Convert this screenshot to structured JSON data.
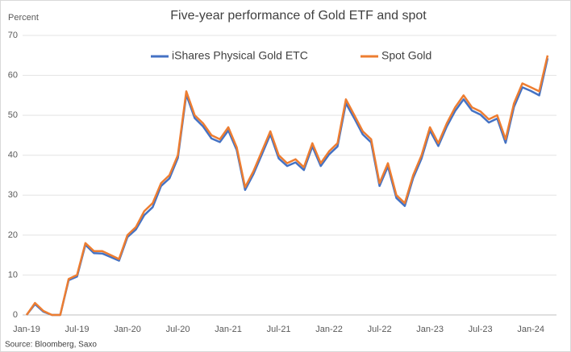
{
  "chart_data": {
    "type": "line",
    "title": "Five-year performance of Gold ETF and spot",
    "y_label": "Percent",
    "source": "Source: Bloomberg, Saxo",
    "categories": [
      "Jan-19",
      null,
      null,
      null,
      null,
      null,
      "Jul-19",
      null,
      null,
      null,
      null,
      null,
      "Jan-20",
      null,
      null,
      null,
      null,
      null,
      "Jul-20",
      null,
      null,
      null,
      null,
      null,
      "Jan-21",
      null,
      null,
      null,
      null,
      null,
      "Jul-21",
      null,
      null,
      null,
      null,
      null,
      "Jan-22",
      null,
      null,
      null,
      null,
      null,
      "Jul-22",
      null,
      null,
      null,
      null,
      null,
      "Jan-23",
      null,
      null,
      null,
      null,
      null,
      "Jul-23",
      null,
      null,
      null,
      null,
      null,
      "Jan-24",
      null,
      null
    ],
    "series": [
      {
        "name": "iShares Physical Gold ETC",
        "color": "#4472c4",
        "values": [
          0,
          2.7,
          0.8,
          0,
          0,
          8.7,
          9.6,
          17.6,
          15.5,
          15.4,
          14.5,
          13.6,
          19.5,
          21.4,
          25,
          27,
          32.3,
          34.2,
          39.3,
          55.2,
          49.3,
          47.2,
          44.2,
          43.3,
          46.2,
          41.3,
          31.3,
          35.3,
          40.2,
          45.2,
          39.2,
          37.3,
          38.2,
          36.3,
          42.2,
          37.3,
          40.2,
          42.2,
          53,
          49.2,
          45.2,
          43.2,
          32.3,
          37.2,
          29.3,
          27.3,
          34.3,
          39.2,
          46.2,
          42.3,
          47.2,
          51.1,
          54,
          51.2,
          50.2,
          48.2,
          49.2,
          43.1,
          52.1,
          57,
          56.1,
          55,
          64.3
        ]
      },
      {
        "name": "Spot Gold",
        "color": "#ed7d31",
        "values": [
          0,
          3,
          1,
          0,
          0,
          9,
          10,
          18,
          16,
          16,
          15,
          14,
          20,
          22,
          26,
          28,
          33,
          35,
          40,
          56,
          50,
          48,
          45,
          44,
          47,
          42,
          32,
          36,
          41,
          46,
          40,
          38,
          39,
          37,
          43,
          38,
          41,
          43,
          54,
          50,
          46,
          44,
          33,
          38,
          30,
          28,
          35,
          40,
          47,
          43,
          48,
          52,
          55,
          52,
          51,
          49,
          50,
          44,
          53,
          58,
          57,
          56,
          65
        ]
      }
    ],
    "ylim": [
      0,
      70
    ],
    "yticks": [
      0,
      10,
      20,
      30,
      40,
      50,
      60,
      70
    ],
    "grid": true,
    "legend": "top"
  }
}
